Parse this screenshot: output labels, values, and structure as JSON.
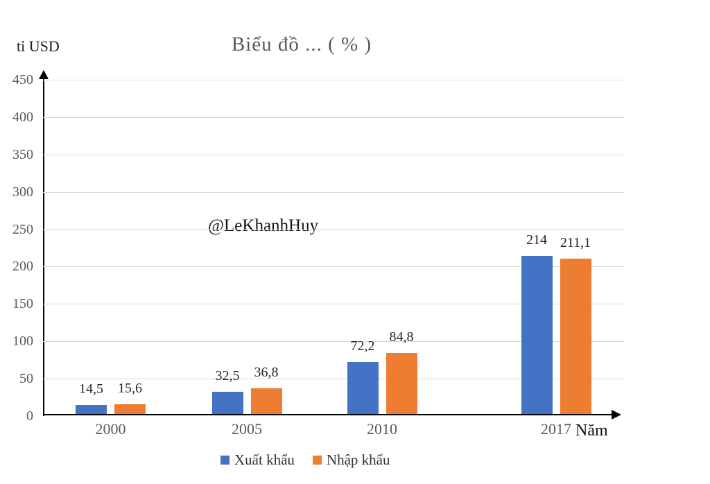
{
  "chart_data": {
    "type": "bar",
    "title": "Biểu đồ ... ( % )",
    "xlabel": "Năm",
    "ylabel": "tỉ USD",
    "ylim": [
      0,
      450
    ],
    "ytick_step": 50,
    "grid": true,
    "legend_position": "bottom",
    "categories": [
      "2000",
      "2005",
      "2010",
      "2017"
    ],
    "series": [
      {
        "name": "Xuất khẩu",
        "color": "#4472C4",
        "values": [
          14.5,
          32.5,
          72.2,
          214
        ],
        "value_labels": [
          "14,5",
          "32,5",
          "72,2",
          "214"
        ]
      },
      {
        "name": "Nhập khẩu",
        "color": "#ED7D31",
        "values": [
          15.6,
          36.8,
          84.8,
          211.1
        ],
        "value_labels": [
          "15,6",
          "36,8",
          "84,8",
          "211,1"
        ]
      }
    ],
    "annotations": [
      "@LeKhanhHuy"
    ]
  },
  "colors": {
    "axis": "#000000",
    "gridline": "#d9d9d9",
    "tick_text": "#595959",
    "title_text": "#595959",
    "value_text": "#262626",
    "background": "#ffffff"
  }
}
